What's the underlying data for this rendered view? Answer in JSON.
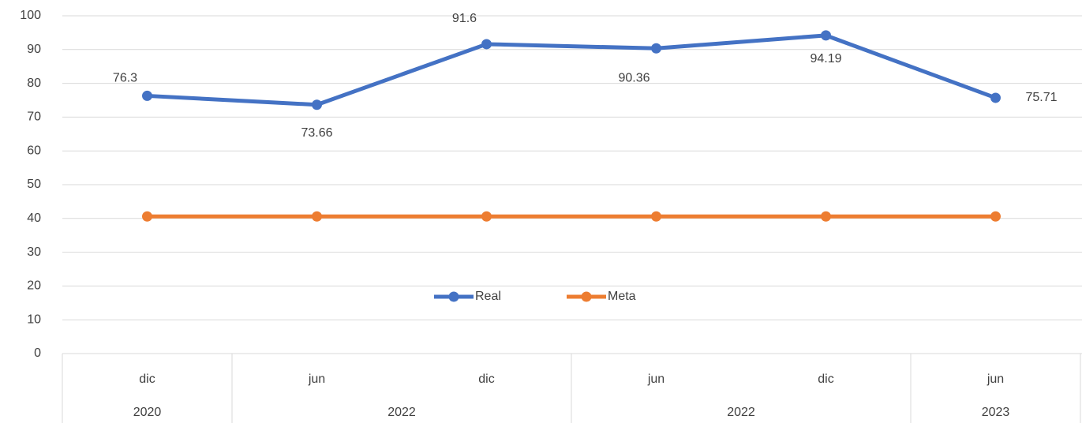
{
  "chart_data": {
    "type": "line",
    "groups": [
      {
        "label": "2020",
        "categories": [
          "dic"
        ]
      },
      {
        "label": "2022",
        "categories": [
          "jun",
          "dic"
        ]
      },
      {
        "label": "2022",
        "categories": [
          "jun",
          "dic"
        ]
      },
      {
        "label": "2023",
        "categories": [
          "jun"
        ]
      }
    ],
    "series": [
      {
        "name": "Real",
        "color": "#4472c4",
        "values": [
          76.3,
          73.66,
          91.6,
          90.36,
          94.19,
          75.71
        ],
        "data_labels": true
      },
      {
        "name": "Meta",
        "color": "#ed7d31",
        "values": [
          40.6,
          40.6,
          40.6,
          40.6,
          40.6,
          40.6
        ],
        "data_labels": false
      }
    ],
    "ylim": [
      0,
      100
    ],
    "yticks": [
      0,
      10,
      20,
      30,
      40,
      50,
      60,
      70,
      80,
      90,
      100
    ],
    "grid": true,
    "legend": "inside-bottom-center"
  }
}
